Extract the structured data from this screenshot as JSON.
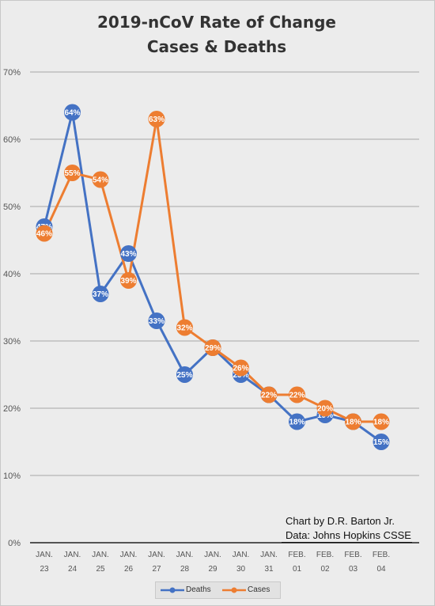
{
  "chart_data": {
    "type": "line",
    "title": "2019-nCoV Rate of Change",
    "subtitle": "Cases & Deaths",
    "xlabel": "",
    "ylabel": "",
    "categories": [
      [
        "JAN.",
        "23"
      ],
      [
        "JAN.",
        "24"
      ],
      [
        "JAN.",
        "25"
      ],
      [
        "JAN.",
        "26"
      ],
      [
        "JAN.",
        "27"
      ],
      [
        "JAN.",
        "28"
      ],
      [
        "JAN.",
        "29"
      ],
      [
        "JAN.",
        "30"
      ],
      [
        "JAN.",
        "31"
      ],
      [
        "FEB.",
        "01"
      ],
      [
        "FEB.",
        "02"
      ],
      [
        "FEB.",
        "03"
      ],
      [
        "FEB.",
        "04"
      ]
    ],
    "ylim": [
      0,
      70
    ],
    "yticks": [
      "0%",
      "10%",
      "20%",
      "30%",
      "40%",
      "50%",
      "60%",
      "70%"
    ],
    "grid": true,
    "legend_position": "bottom",
    "series": [
      {
        "name": "Deaths",
        "color": "#4472c4",
        "values": [
          47,
          64,
          37,
          43,
          33,
          25,
          29,
          25,
          22,
          18,
          19,
          18,
          15
        ],
        "labels": [
          "47%",
          "64%",
          "37%",
          "43%",
          "33%",
          "25%",
          "29%",
          "25%",
          "22%",
          "18%",
          "19%",
          "18%",
          "15%"
        ]
      },
      {
        "name": "Cases",
        "color": "#ed7d31",
        "values": [
          46,
          55,
          54,
          39,
          63,
          32,
          29,
          26,
          22,
          22,
          20,
          18,
          18
        ],
        "labels": [
          "46%",
          "55%",
          "54%",
          "39%",
          "63%",
          "32%",
          "29%",
          "26%",
          "22%",
          "22%",
          "20%",
          "18%",
          "18%"
        ]
      }
    ]
  },
  "credits": {
    "line1": "Chart by D.R. Barton Jr.",
    "line2": "Data: Johns Hopkins CSSE"
  },
  "legend": {
    "deaths": "Deaths",
    "cases": "Cases"
  }
}
